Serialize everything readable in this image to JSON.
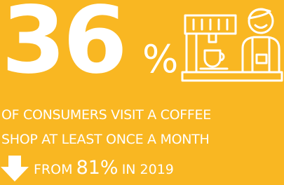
{
  "stat": {
    "number": "36",
    "unit": "%"
  },
  "description": {
    "lines": [
      "OF CONSUMERS VISIT A COFFEE",
      "SHOP AT LEAST ONCE A MONTH"
    ]
  },
  "comparison": {
    "prefix": "FROM",
    "value": "81%",
    "suffix": "IN 2019"
  }
}
